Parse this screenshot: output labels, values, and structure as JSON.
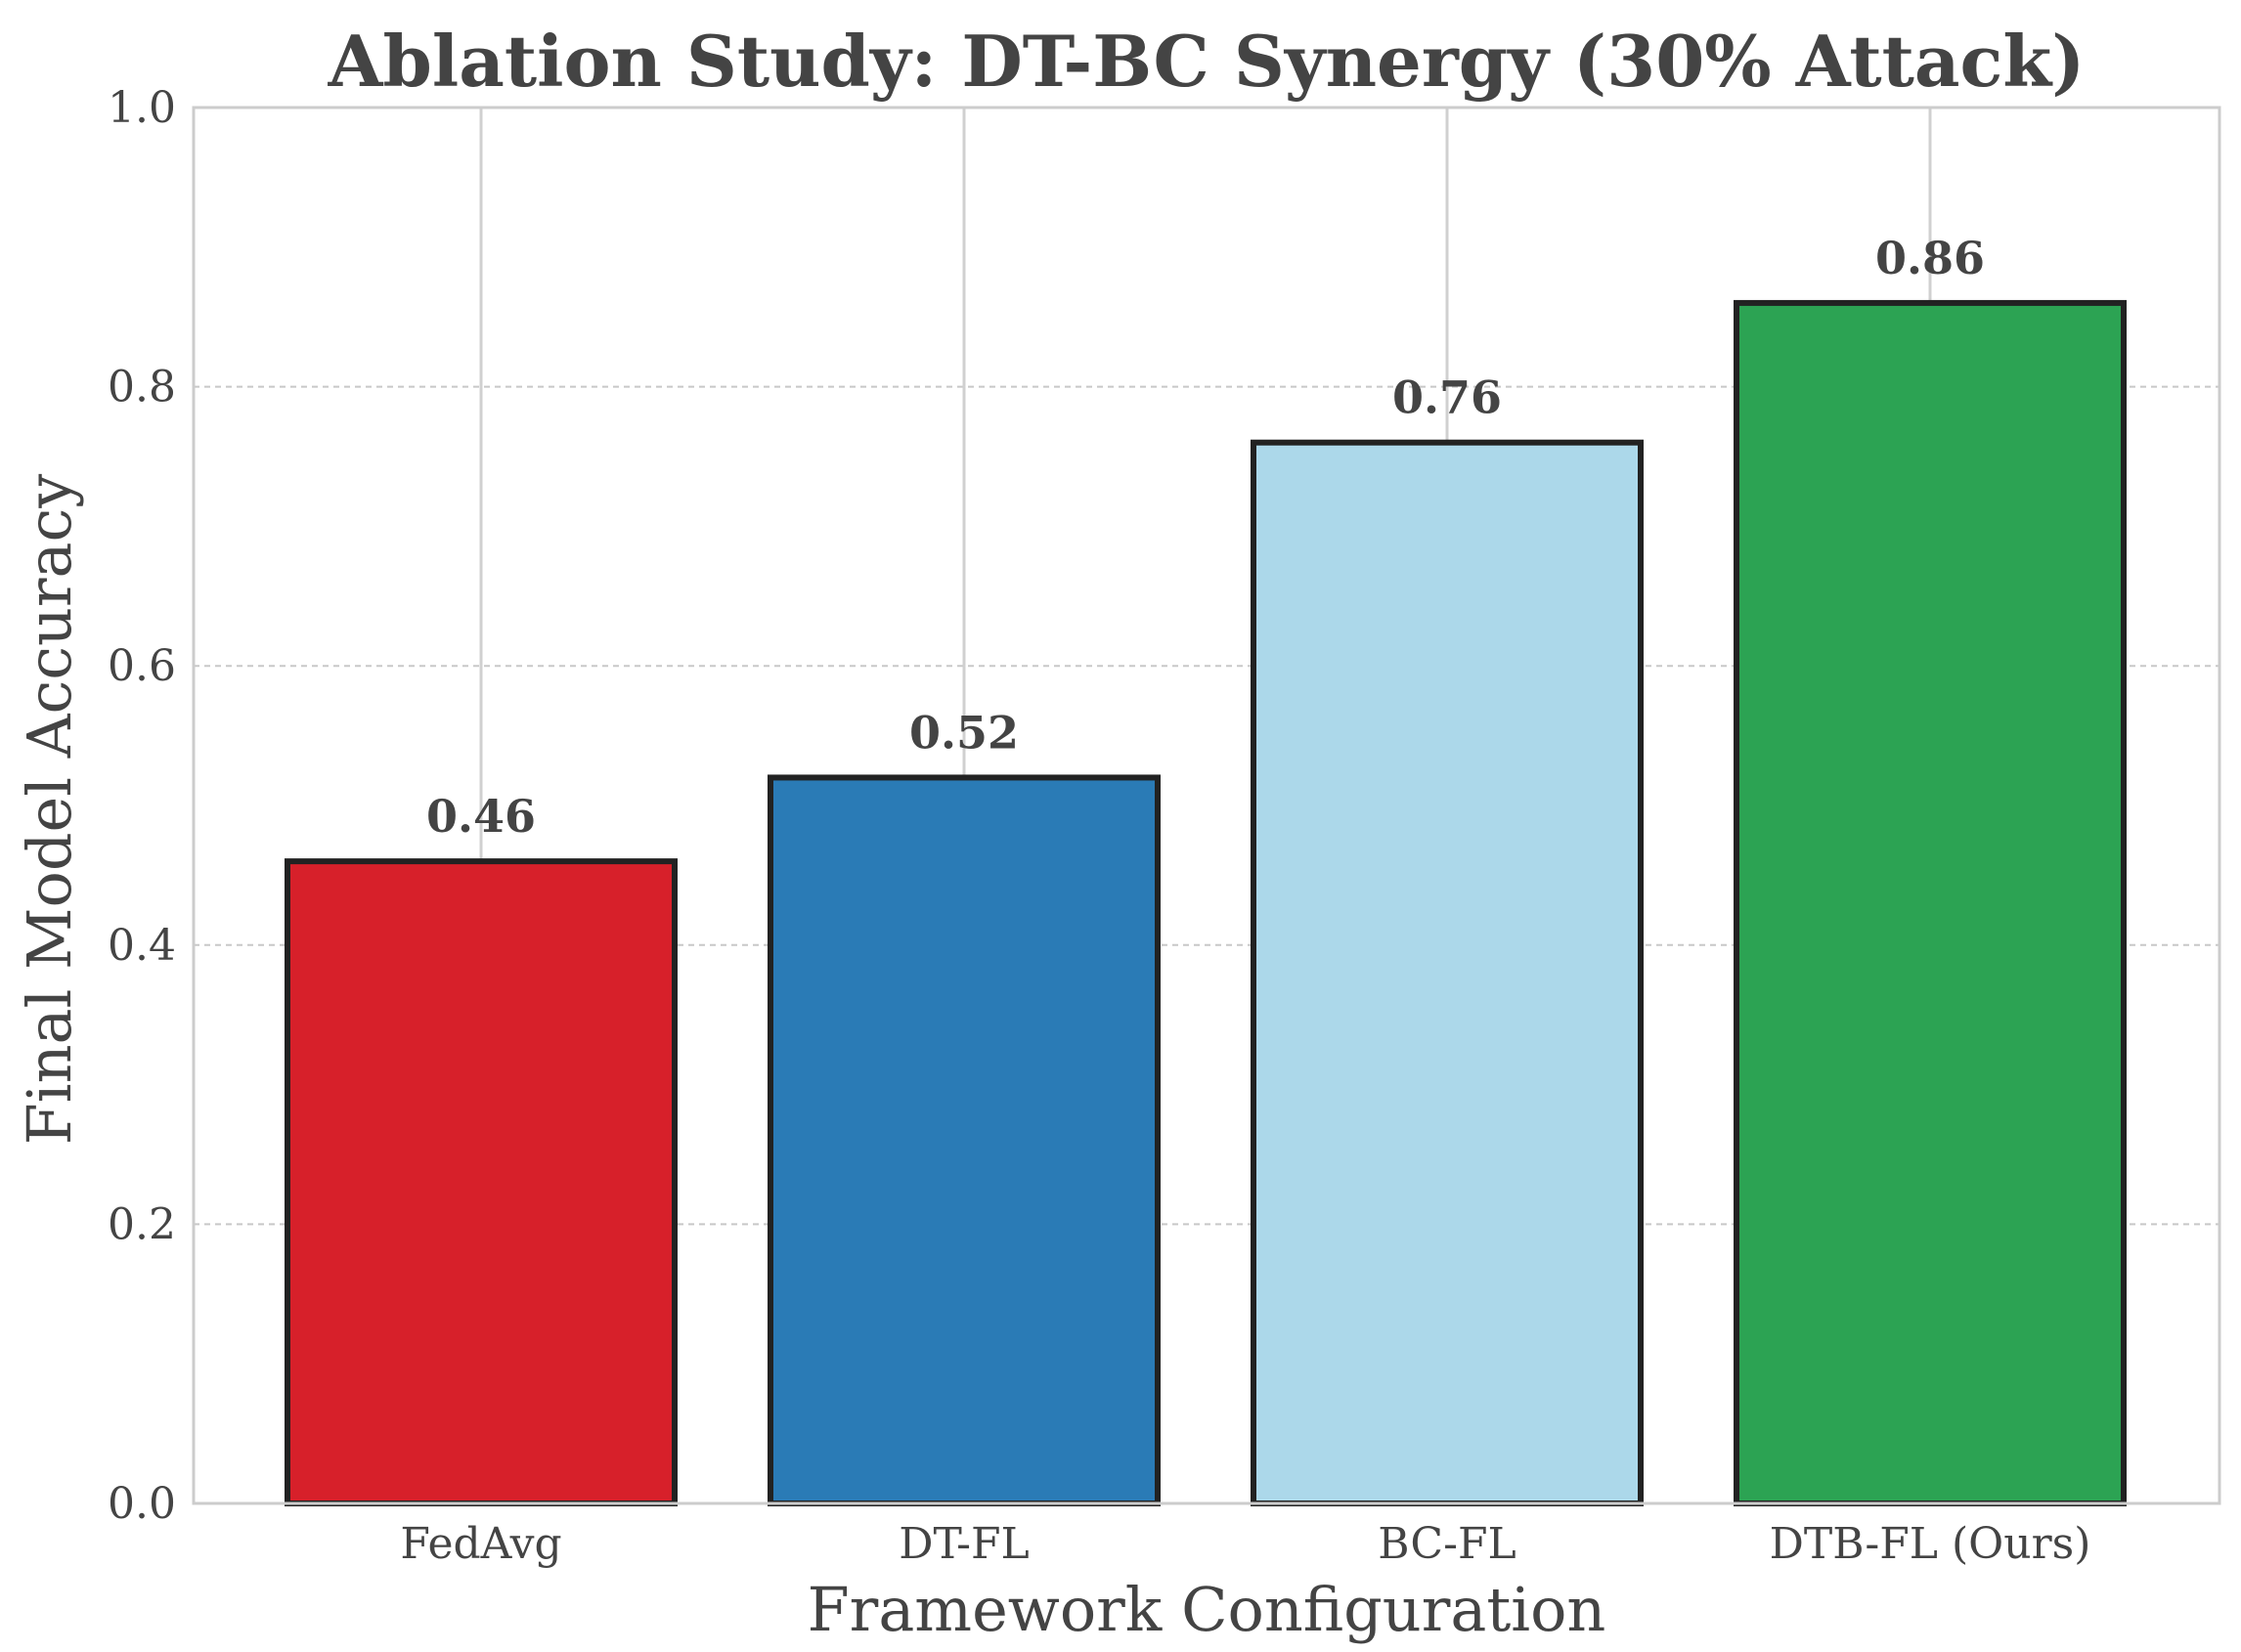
{
  "chart_data": {
    "type": "bar",
    "title": "Ablation Study: DT-BC Synergy (30% Attack)",
    "xlabel": "Framework Configuration",
    "ylabel": "Final Model Accuracy",
    "categories": [
      "FedAvg",
      "DT-FL",
      "BC-FL",
      "DTB-FL (Ours)"
    ],
    "values": [
      0.46,
      0.52,
      0.76,
      0.86
    ],
    "value_labels": [
      "0.46",
      "0.52",
      "0.76",
      "0.86"
    ],
    "colors": [
      "#d7202a",
      "#2a7bb6",
      "#acd8ea",
      "#2ca353"
    ],
    "ylim": [
      0,
      1.0
    ],
    "yticks": [
      0.0,
      0.2,
      0.4,
      0.6,
      0.8,
      1.0
    ],
    "ytick_labels": [
      "0.0",
      "0.2",
      "0.4",
      "0.6",
      "0.8",
      "1.0"
    ],
    "grid": true,
    "edge_color": "#222222"
  }
}
